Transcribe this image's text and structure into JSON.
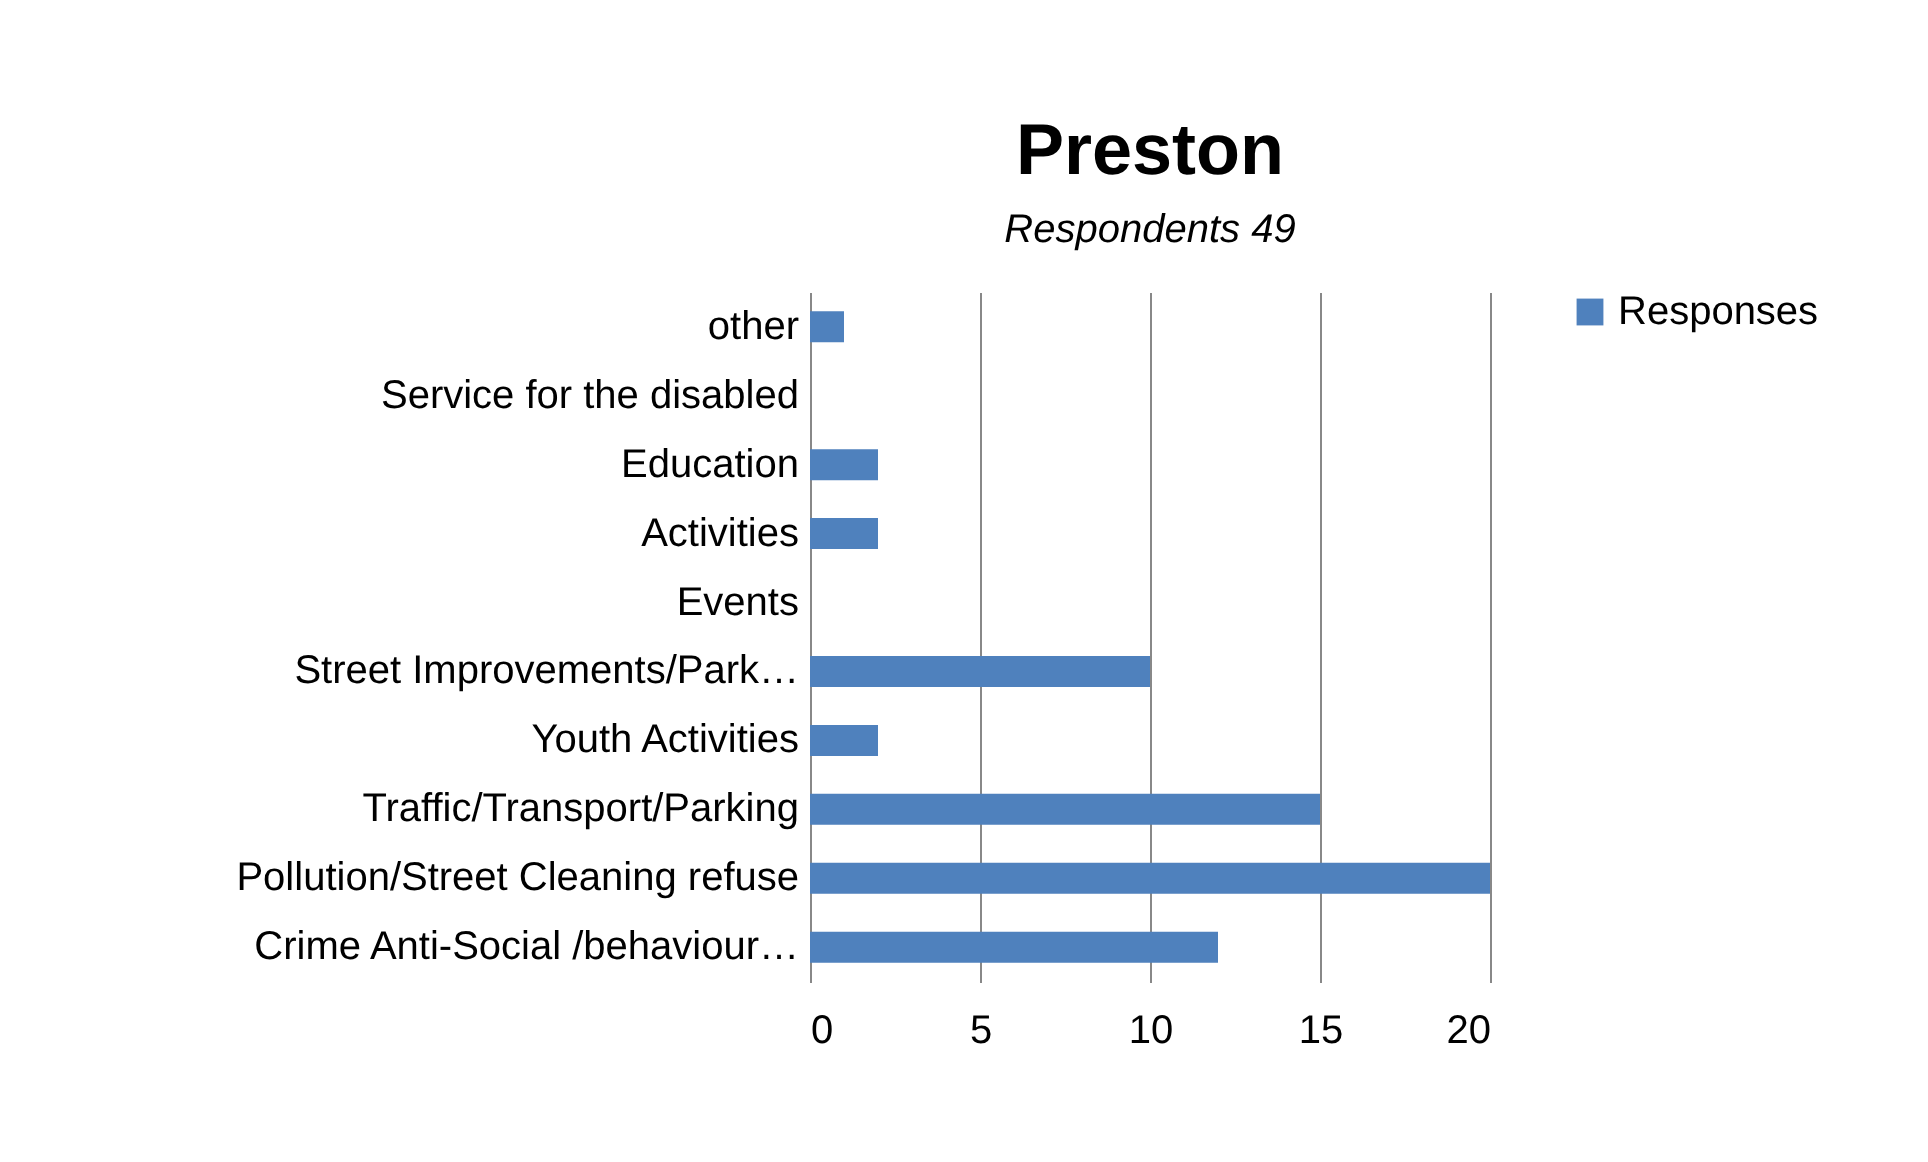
{
  "chart_data": {
    "type": "bar",
    "orientation": "horizontal",
    "title": "Preston",
    "subtitle": "Respondents 49",
    "categories": [
      "other",
      "Service for the disabled",
      "Education",
      "Activities",
      "Events",
      "Street Improvements/Park…",
      "Youth Activities",
      "Traffic/Transport/Parking",
      "Pollution/Street Cleaning refuse",
      "Crime Anti-Social /behaviour…"
    ],
    "series": [
      {
        "name": "Responses",
        "color": "#4f81bd",
        "values": [
          1,
          0,
          2,
          2,
          0,
          10,
          2,
          15,
          20,
          12
        ]
      }
    ],
    "xlim": [
      0,
      20
    ],
    "xticks": [
      0,
      5,
      10,
      15,
      20
    ],
    "grid": "x",
    "legend": "right"
  }
}
